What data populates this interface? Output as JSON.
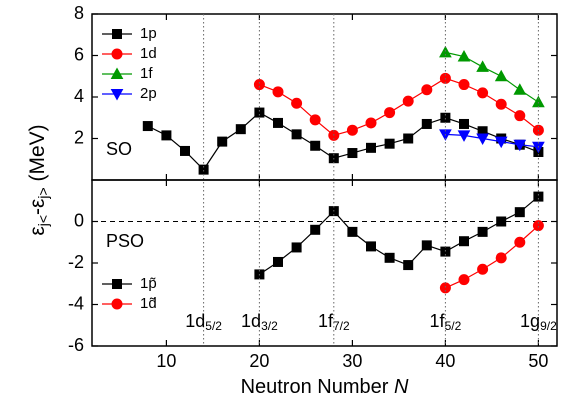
{
  "chart_data": [
    {
      "type": "line",
      "label": "SO",
      "ylabel": [
        "ε",
        "j<",
        "-ε",
        "j>",
        " (MeV)"
      ],
      "xlim": [
        2,
        52
      ],
      "ylim": [
        0,
        8
      ],
      "yticks": [
        2,
        4,
        6,
        8
      ],
      "legend": "upper left",
      "series": [
        {
          "name": "1p",
          "color": "#000000",
          "marker": "square",
          "x": [
            8,
            10,
            12,
            14,
            16,
            18,
            20,
            22,
            24,
            26,
            28,
            30,
            32,
            34,
            36,
            38,
            40,
            42,
            44,
            46,
            48,
            50
          ],
          "values": [
            2.6,
            2.15,
            1.4,
            0.5,
            1.85,
            2.45,
            3.25,
            2.75,
            2.2,
            1.65,
            1.05,
            1.3,
            1.55,
            1.75,
            2.0,
            2.7,
            3.0,
            2.7,
            2.35,
            2.0,
            1.7,
            1.35
          ]
        },
        {
          "name": "1d",
          "color": "#ff0000",
          "marker": "circle",
          "x": [
            20,
            22,
            24,
            26,
            28,
            30,
            32,
            34,
            36,
            38,
            40,
            42,
            44,
            46,
            48,
            50
          ],
          "values": [
            4.6,
            4.25,
            3.7,
            2.9,
            2.15,
            2.4,
            2.75,
            3.25,
            3.8,
            4.35,
            4.9,
            4.6,
            4.2,
            3.65,
            3.1,
            2.4
          ]
        },
        {
          "name": "1f",
          "color": "#009900",
          "marker": "triangle-up",
          "x": [
            40,
            42,
            44,
            46,
            48,
            50
          ],
          "values": [
            6.15,
            5.95,
            5.45,
            5.0,
            4.35,
            3.75
          ]
        },
        {
          "name": "2p",
          "color": "#0000ff",
          "marker": "triangle-down",
          "x": [
            40,
            42,
            44,
            46,
            48,
            50
          ],
          "values": [
            2.2,
            2.15,
            2.0,
            1.85,
            1.7,
            1.6
          ]
        }
      ]
    },
    {
      "type": "line",
      "label": "PSO",
      "xlabel": [
        "Neutron Number ",
        "N"
      ],
      "xlim": [
        2,
        52
      ],
      "xticks": [
        10,
        20,
        30,
        40,
        50
      ],
      "ylim": [
        -6,
        2
      ],
      "yticks": [
        -6,
        -4,
        -2,
        0
      ],
      "legend": "lower left",
      "hline": 0,
      "vlines": [
        14,
        20,
        28,
        40,
        50
      ],
      "shell_labels": [
        {
          "main": "1d",
          "sub": "5/2"
        },
        {
          "main": "1d",
          "sub": "3/2"
        },
        {
          "main": "1f",
          "sub": "7/2"
        },
        {
          "main": "1f",
          "sub": "5/2"
        },
        {
          "main": "1g",
          "sub": "9/2"
        }
      ],
      "series": [
        {
          "name": "1p̃",
          "color": "#000000",
          "marker": "square",
          "x": [
            20,
            22,
            24,
            26,
            28,
            30,
            32,
            34,
            36,
            38,
            40,
            42,
            44,
            46,
            48,
            50
          ],
          "values": [
            -2.55,
            -1.95,
            -1.25,
            -0.4,
            0.5,
            -0.5,
            -1.2,
            -1.75,
            -2.1,
            -1.15,
            -1.45,
            -0.95,
            -0.5,
            0.0,
            0.45,
            1.2
          ]
        },
        {
          "name": "1d̃",
          "color": "#ff0000",
          "marker": "circle",
          "x": [
            40,
            42,
            44,
            46,
            48,
            50
          ],
          "values": [
            -3.2,
            -2.8,
            -2.3,
            -1.75,
            -1.0,
            -0.2
          ]
        }
      ]
    }
  ]
}
